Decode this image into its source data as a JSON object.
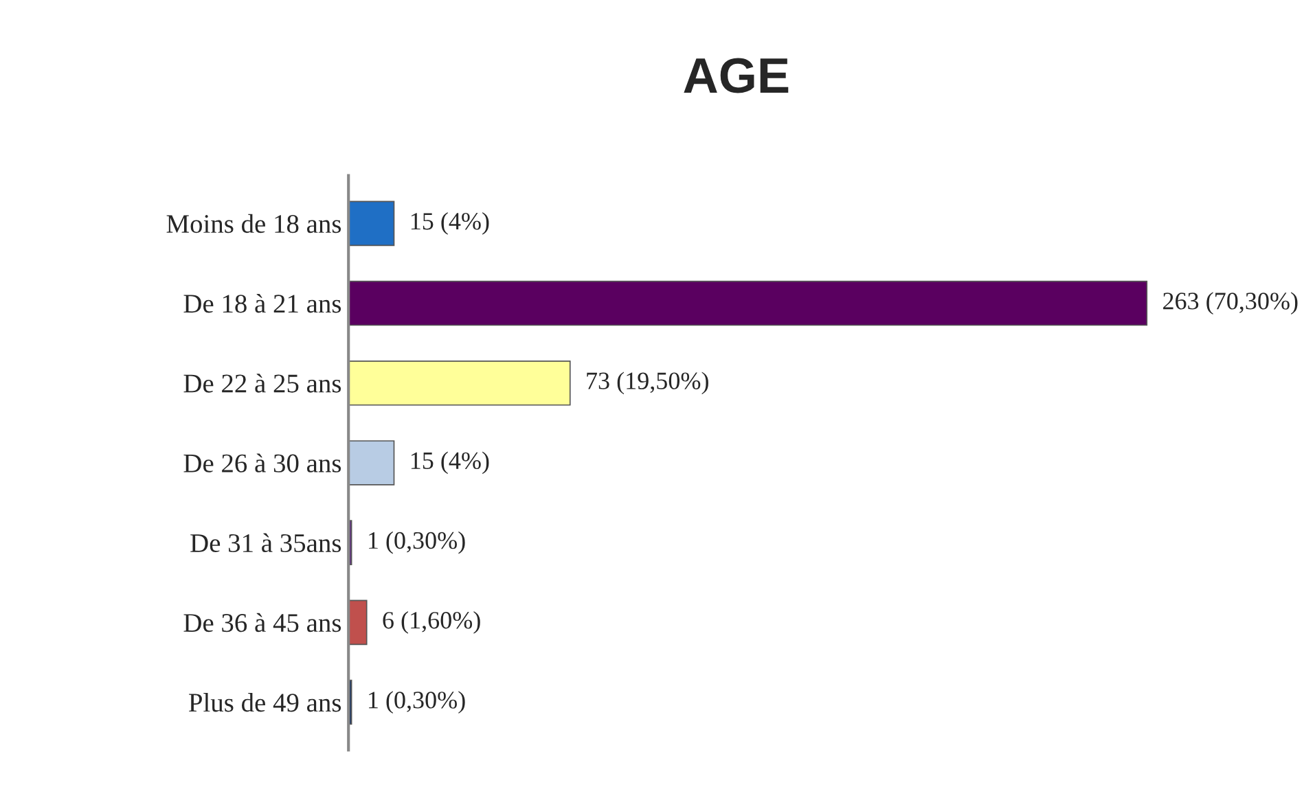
{
  "chart_data": {
    "type": "bar",
    "orientation": "horizontal",
    "title": "AGE",
    "categories": [
      "Moins de 18 ans",
      "De 18 à 21 ans",
      "De 22 à 25 ans",
      "De 26 à 30 ans",
      "De 31 à 35ans",
      "De 36 à 45 ans",
      "Plus de 49 ans"
    ],
    "values": [
      15,
      263,
      73,
      15,
      1,
      6,
      1
    ],
    "colors": [
      "#1f6fc5",
      "#5a0060",
      "#ffff99",
      "#b8cce4",
      "#60317f",
      "#c0504d",
      "#1f3864"
    ],
    "value_labels": [
      "15 (4%)",
      "263 (70,30%)",
      "73 (19,50%)",
      "15 (4%)",
      "1 (0,30%)",
      "6 (1,60%)",
      "1 (0,30%)"
    ],
    "tick_labels": "y",
    "grid": false,
    "legend": false
  }
}
